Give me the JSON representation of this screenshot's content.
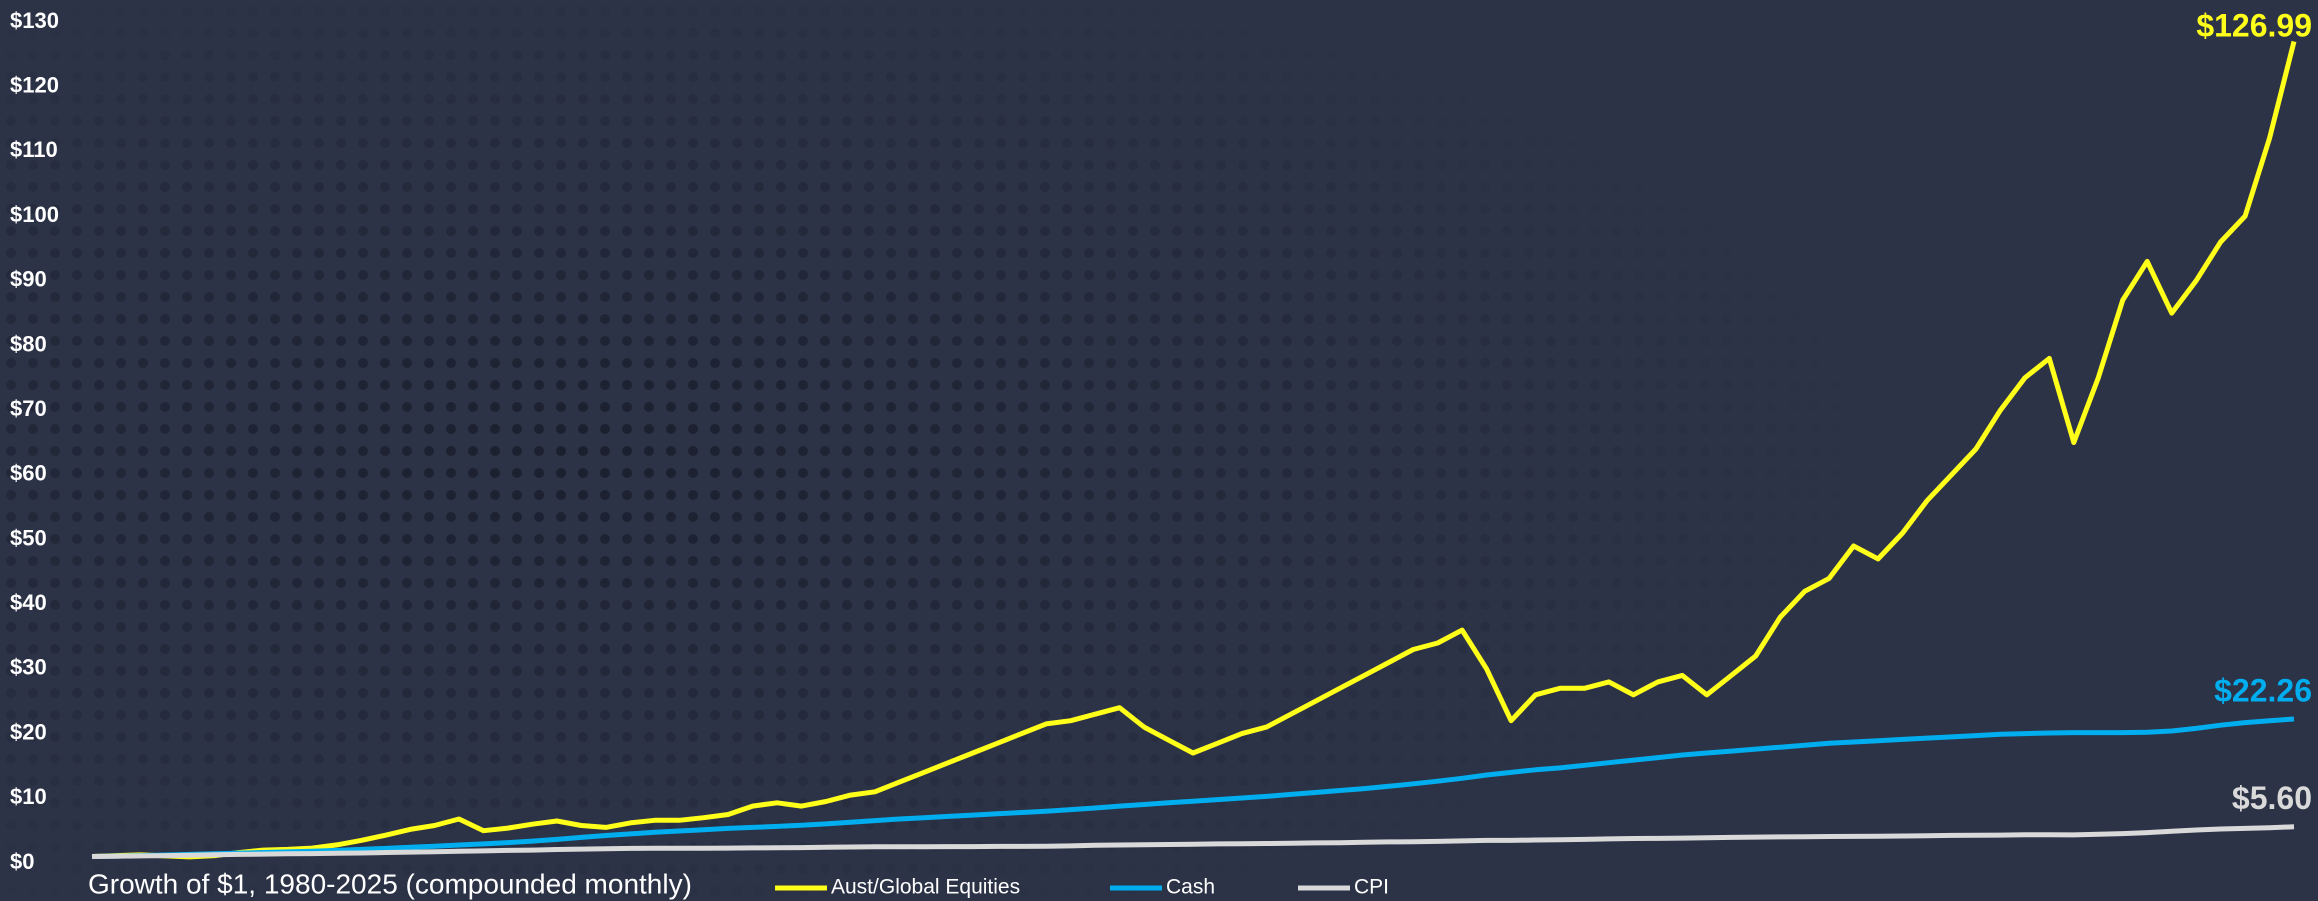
{
  "chart_data": {
    "type": "line",
    "title": "Growth of $1, 1980-2025 (compounded monthly)",
    "ylim": [
      0,
      130
    ],
    "yticks": [
      {
        "value": 0,
        "label": "$0"
      },
      {
        "value": 10,
        "label": "$10"
      },
      {
        "value": 20,
        "label": "$20"
      },
      {
        "value": 30,
        "label": "$30"
      },
      {
        "value": 40,
        "label": "$40"
      },
      {
        "value": 50,
        "label": "$50"
      },
      {
        "value": 60,
        "label": "$60"
      },
      {
        "value": 70,
        "label": "$70"
      },
      {
        "value": 80,
        "label": "$80"
      },
      {
        "value": 90,
        "label": "$90"
      },
      {
        "value": 100,
        "label": "$100"
      },
      {
        "value": 110,
        "label": "$110"
      },
      {
        "value": 120,
        "label": "$120"
      },
      {
        "value": 130,
        "label": "$130"
      }
    ],
    "series": [
      {
        "name": "Aust/Global Equities",
        "color": "#ffff1a",
        "values": [
          1.0,
          1.15,
          1.25,
          1.1,
          0.95,
          1.15,
          1.6,
          2.0,
          2.1,
          2.3,
          2.8,
          3.5,
          4.3,
          5.2,
          5.8,
          6.8,
          5.0,
          5.4,
          6.0,
          6.5,
          5.8,
          5.5,
          6.2,
          6.6,
          6.6,
          7.0,
          7.5,
          8.8,
          9.3,
          8.8,
          9.5,
          10.5,
          11,
          12.5,
          14,
          15.5,
          17,
          18.5,
          20,
          21.5,
          22,
          23,
          24,
          21,
          19,
          17,
          18.5,
          20,
          21,
          23,
          25,
          27,
          29,
          31,
          33,
          34,
          36,
          30,
          22,
          26,
          27,
          27,
          28,
          26,
          28,
          29,
          26,
          29,
          32,
          38,
          42,
          44,
          49,
          47,
          51,
          56,
          60,
          64,
          70,
          75,
          78,
          65,
          75,
          87,
          93,
          85,
          90,
          96,
          100,
          112,
          126.99
        ],
        "value_labels": [
          null,
          null,
          null,
          null,
          null,
          null,
          null,
          null,
          null,
          null,
          null,
          null,
          null,
          null,
          null,
          null,
          null,
          null,
          null,
          null,
          null,
          null,
          null,
          null,
          null,
          null,
          null,
          null,
          null,
          null,
          null,
          null,
          null,
          null,
          null,
          null,
          null,
          null,
          null,
          null,
          null,
          null,
          null,
          null,
          null,
          null,
          null,
          null,
          null,
          null,
          null,
          null,
          null,
          null,
          null,
          null,
          null,
          null,
          null,
          null,
          null,
          null,
          null,
          null,
          null,
          null,
          null,
          null,
          null,
          null,
          null,
          null,
          null,
          null,
          null,
          null,
          null,
          null,
          null,
          null,
          null,
          null,
          null,
          null,
          null,
          null,
          null,
          null,
          null,
          null,
          "$126.99"
        ]
      },
      {
        "name": "Cash",
        "color": "#00aeef",
        "values": [
          1.0,
          1.07,
          1.15,
          1.24,
          1.33,
          1.43,
          1.53,
          1.62,
          1.72,
          1.83,
          1.95,
          2.1,
          2.25,
          2.42,
          2.6,
          2.78,
          2.96,
          3.15,
          3.38,
          3.65,
          3.95,
          4.25,
          4.5,
          4.75,
          4.95,
          5.15,
          5.35,
          5.5,
          5.65,
          5.85,
          6.05,
          6.3,
          6.55,
          6.8,
          7.0,
          7.2,
          7.4,
          7.6,
          7.8,
          8.0,
          8.25,
          8.5,
          8.8,
          9.05,
          9.3,
          9.55,
          9.8,
          10.05,
          10.3,
          10.6,
          10.9,
          11.2,
          11.5,
          11.85,
          12.25,
          12.65,
          13.1,
          13.6,
          14.0,
          14.4,
          14.7,
          15.1,
          15.5,
          15.9,
          16.3,
          16.7,
          17.0,
          17.3,
          17.6,
          17.9,
          18.2,
          18.5,
          18.7,
          18.9,
          19.1,
          19.3,
          19.5,
          19.7,
          19.9,
          20.0,
          20.1,
          20.15,
          20.15,
          20.15,
          20.2,
          20.4,
          20.8,
          21.3,
          21.7,
          22.0,
          22.26
        ],
        "value_labels": [
          null,
          null,
          null,
          null,
          null,
          null,
          null,
          null,
          null,
          null,
          null,
          null,
          null,
          null,
          null,
          null,
          null,
          null,
          null,
          null,
          null,
          null,
          null,
          null,
          null,
          null,
          null,
          null,
          null,
          null,
          null,
          null,
          null,
          null,
          null,
          null,
          null,
          null,
          null,
          null,
          null,
          null,
          null,
          null,
          null,
          null,
          null,
          null,
          null,
          null,
          null,
          null,
          null,
          null,
          null,
          null,
          null,
          null,
          null,
          null,
          null,
          null,
          null,
          null,
          null,
          null,
          null,
          null,
          null,
          null,
          null,
          null,
          null,
          null,
          null,
          null,
          null,
          null,
          null,
          null,
          null,
          null,
          null,
          null,
          null,
          null,
          null,
          null,
          null,
          null,
          "$22.26"
        ]
      },
      {
        "name": "CPI",
        "color": "#d9d9d9",
        "values": [
          1.0,
          1.05,
          1.1,
          1.15,
          1.21,
          1.27,
          1.33,
          1.38,
          1.42,
          1.45,
          1.5,
          1.55,
          1.62,
          1.68,
          1.75,
          1.81,
          1.87,
          1.94,
          2.0,
          2.08,
          2.15,
          2.21,
          2.25,
          2.27,
          2.28,
          2.29,
          2.31,
          2.33,
          2.35,
          2.38,
          2.43,
          2.48,
          2.5,
          2.52,
          2.52,
          2.53,
          2.54,
          2.56,
          2.57,
          2.6,
          2.65,
          2.75,
          2.78,
          2.82,
          2.86,
          2.9,
          2.95,
          2.98,
          3.02,
          3.06,
          3.1,
          3.14,
          3.2,
          3.26,
          3.28,
          3.34,
          3.42,
          3.5,
          3.5,
          3.55,
          3.6,
          3.65,
          3.73,
          3.78,
          3.8,
          3.85,
          3.9,
          3.95,
          4.0,
          4.03,
          4.06,
          4.09,
          4.11,
          4.14,
          4.18,
          4.22,
          4.26,
          4.29,
          4.32,
          4.36,
          4.38,
          4.35,
          4.45,
          4.55,
          4.7,
          4.9,
          5.1,
          5.25,
          5.35,
          5.45,
          5.6
        ],
        "value_labels": [
          null,
          null,
          null,
          null,
          null,
          null,
          null,
          null,
          null,
          null,
          null,
          null,
          null,
          null,
          null,
          null,
          null,
          null,
          null,
          null,
          null,
          null,
          null,
          null,
          null,
          null,
          null,
          null,
          null,
          null,
          null,
          null,
          null,
          null,
          null,
          null,
          null,
          null,
          null,
          null,
          null,
          null,
          null,
          null,
          null,
          null,
          null,
          null,
          null,
          null,
          null,
          null,
          null,
          null,
          null,
          null,
          null,
          null,
          null,
          null,
          null,
          null,
          null,
          null,
          null,
          null,
          null,
          null,
          null,
          null,
          null,
          null,
          null,
          null,
          null,
          null,
          null,
          null,
          null,
          null,
          null,
          null,
          null,
          null,
          null,
          null,
          null,
          null,
          null,
          null,
          "$5.60"
        ]
      }
    ]
  }
}
